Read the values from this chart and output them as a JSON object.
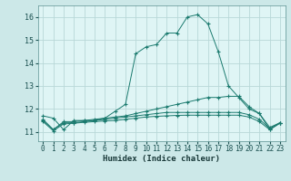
{
  "bg_color": "#cce8e8",
  "plot_bg_color": "#dff5f5",
  "line_color": "#1a7a6e",
  "grid_color": "#b8d8d8",
  "xlabel": "Humidex (Indice chaleur)",
  "xlim": [
    -0.5,
    23.5
  ],
  "ylim": [
    10.6,
    16.5
  ],
  "yticks": [
    11,
    12,
    13,
    14,
    15,
    16
  ],
  "xticks": [
    0,
    1,
    2,
    3,
    4,
    5,
    6,
    7,
    8,
    9,
    10,
    11,
    12,
    13,
    14,
    15,
    16,
    17,
    18,
    19,
    20,
    21,
    22,
    23
  ],
  "series1_x": [
    0,
    1,
    2,
    3,
    4,
    5,
    6,
    7,
    8,
    9,
    10,
    11,
    12,
    13,
    14,
    15,
    16,
    17,
    18,
    19,
    20,
    21,
    22,
    23
  ],
  "series1_y": [
    11.7,
    11.6,
    11.1,
    11.5,
    11.5,
    11.5,
    11.6,
    11.9,
    12.2,
    14.4,
    14.7,
    14.8,
    15.3,
    15.3,
    16.0,
    16.1,
    15.7,
    14.5,
    13.0,
    12.5,
    12.0,
    11.8,
    11.1,
    11.4
  ],
  "series2_x": [
    0,
    1,
    2,
    3,
    4,
    5,
    6,
    7,
    8,
    9,
    10,
    11,
    12,
    13,
    14,
    15,
    16,
    17,
    18,
    19,
    20,
    21,
    22,
    23
  ],
  "series2_y": [
    11.55,
    11.1,
    11.45,
    11.45,
    11.5,
    11.55,
    11.6,
    11.65,
    11.7,
    11.8,
    11.9,
    12.0,
    12.1,
    12.2,
    12.3,
    12.4,
    12.5,
    12.5,
    12.55,
    12.55,
    12.1,
    11.8,
    11.2,
    11.4
  ],
  "series3_x": [
    0,
    1,
    2,
    3,
    4,
    5,
    6,
    7,
    8,
    9,
    10,
    11,
    12,
    13,
    14,
    15,
    16,
    17,
    18,
    19,
    20,
    21,
    22,
    23
  ],
  "series3_y": [
    11.5,
    11.1,
    11.4,
    11.4,
    11.45,
    11.5,
    11.55,
    11.6,
    11.65,
    11.7,
    11.75,
    11.8,
    11.85,
    11.85,
    11.85,
    11.85,
    11.85,
    11.85,
    11.85,
    11.85,
    11.75,
    11.55,
    11.15,
    11.4
  ],
  "series4_x": [
    0,
    1,
    2,
    3,
    4,
    5,
    6,
    7,
    8,
    9,
    10,
    11,
    12,
    13,
    14,
    15,
    16,
    17,
    18,
    19,
    20,
    21,
    22,
    23
  ],
  "series4_y": [
    11.45,
    11.05,
    11.35,
    11.38,
    11.42,
    11.45,
    11.48,
    11.5,
    11.55,
    11.6,
    11.65,
    11.68,
    11.7,
    11.72,
    11.73,
    11.73,
    11.73,
    11.73,
    11.73,
    11.73,
    11.65,
    11.45,
    11.1,
    11.38
  ]
}
